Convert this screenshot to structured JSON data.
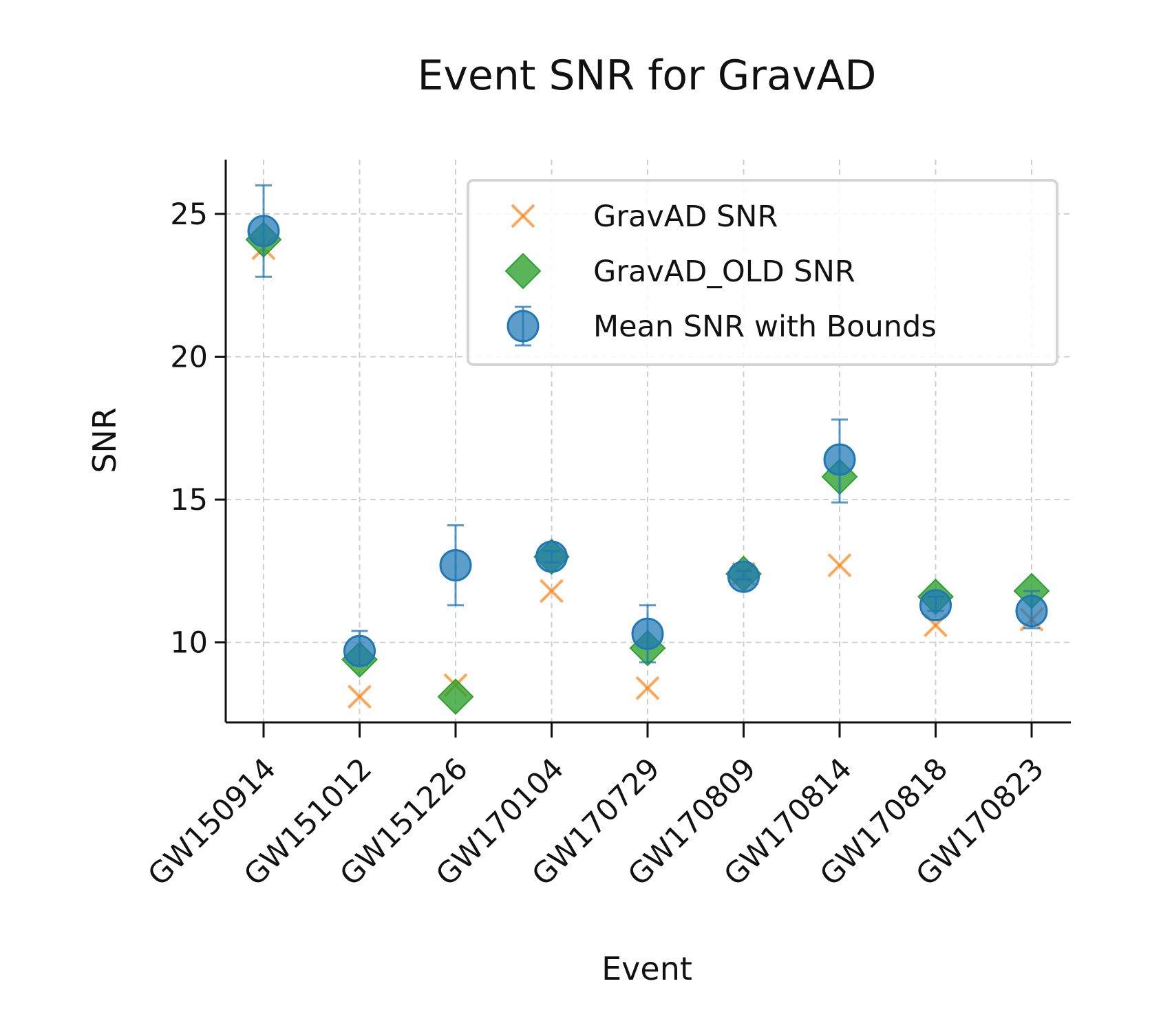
{
  "chart_data": {
    "type": "scatter",
    "title": "Event SNR for GravAD",
    "xlabel": "Event",
    "ylabel": "SNR",
    "categories": [
      "GW150914",
      "GW151012",
      "GW151226",
      "GW170104",
      "GW170729",
      "GW170809",
      "GW170814",
      "GW170818",
      "GW170823"
    ],
    "ylim": [
      7.2,
      26.9
    ],
    "yticks": [
      10,
      15,
      20,
      25
    ],
    "grid": true,
    "legend_position": "top-right",
    "series": [
      {
        "name": "GravAD SNR",
        "marker": "x",
        "color": "#ff7f0e",
        "values": [
          23.8,
          8.1,
          8.5,
          11.8,
          8.4,
          12.4,
          12.7,
          10.6,
          10.8
        ]
      },
      {
        "name": "GravAD_OLD SNR",
        "marker": "diamond",
        "color": "#2ca02c",
        "values": [
          24.1,
          9.4,
          8.1,
          13.0,
          9.8,
          12.4,
          15.8,
          11.6,
          11.8
        ]
      },
      {
        "name": "Mean SNR with Bounds",
        "marker": "circle-errorbar",
        "color": "#1f77b4",
        "values": [
          24.4,
          9.7,
          12.7,
          13.0,
          10.3,
          12.3,
          16.4,
          11.3,
          11.1
        ],
        "lower": [
          22.8,
          9.2,
          11.3,
          12.8,
          9.3,
          12.2,
          14.9,
          11.1,
          10.5
        ],
        "upper": [
          26.0,
          10.4,
          14.1,
          13.2,
          11.3,
          12.5,
          17.8,
          11.6,
          11.8
        ]
      }
    ]
  }
}
